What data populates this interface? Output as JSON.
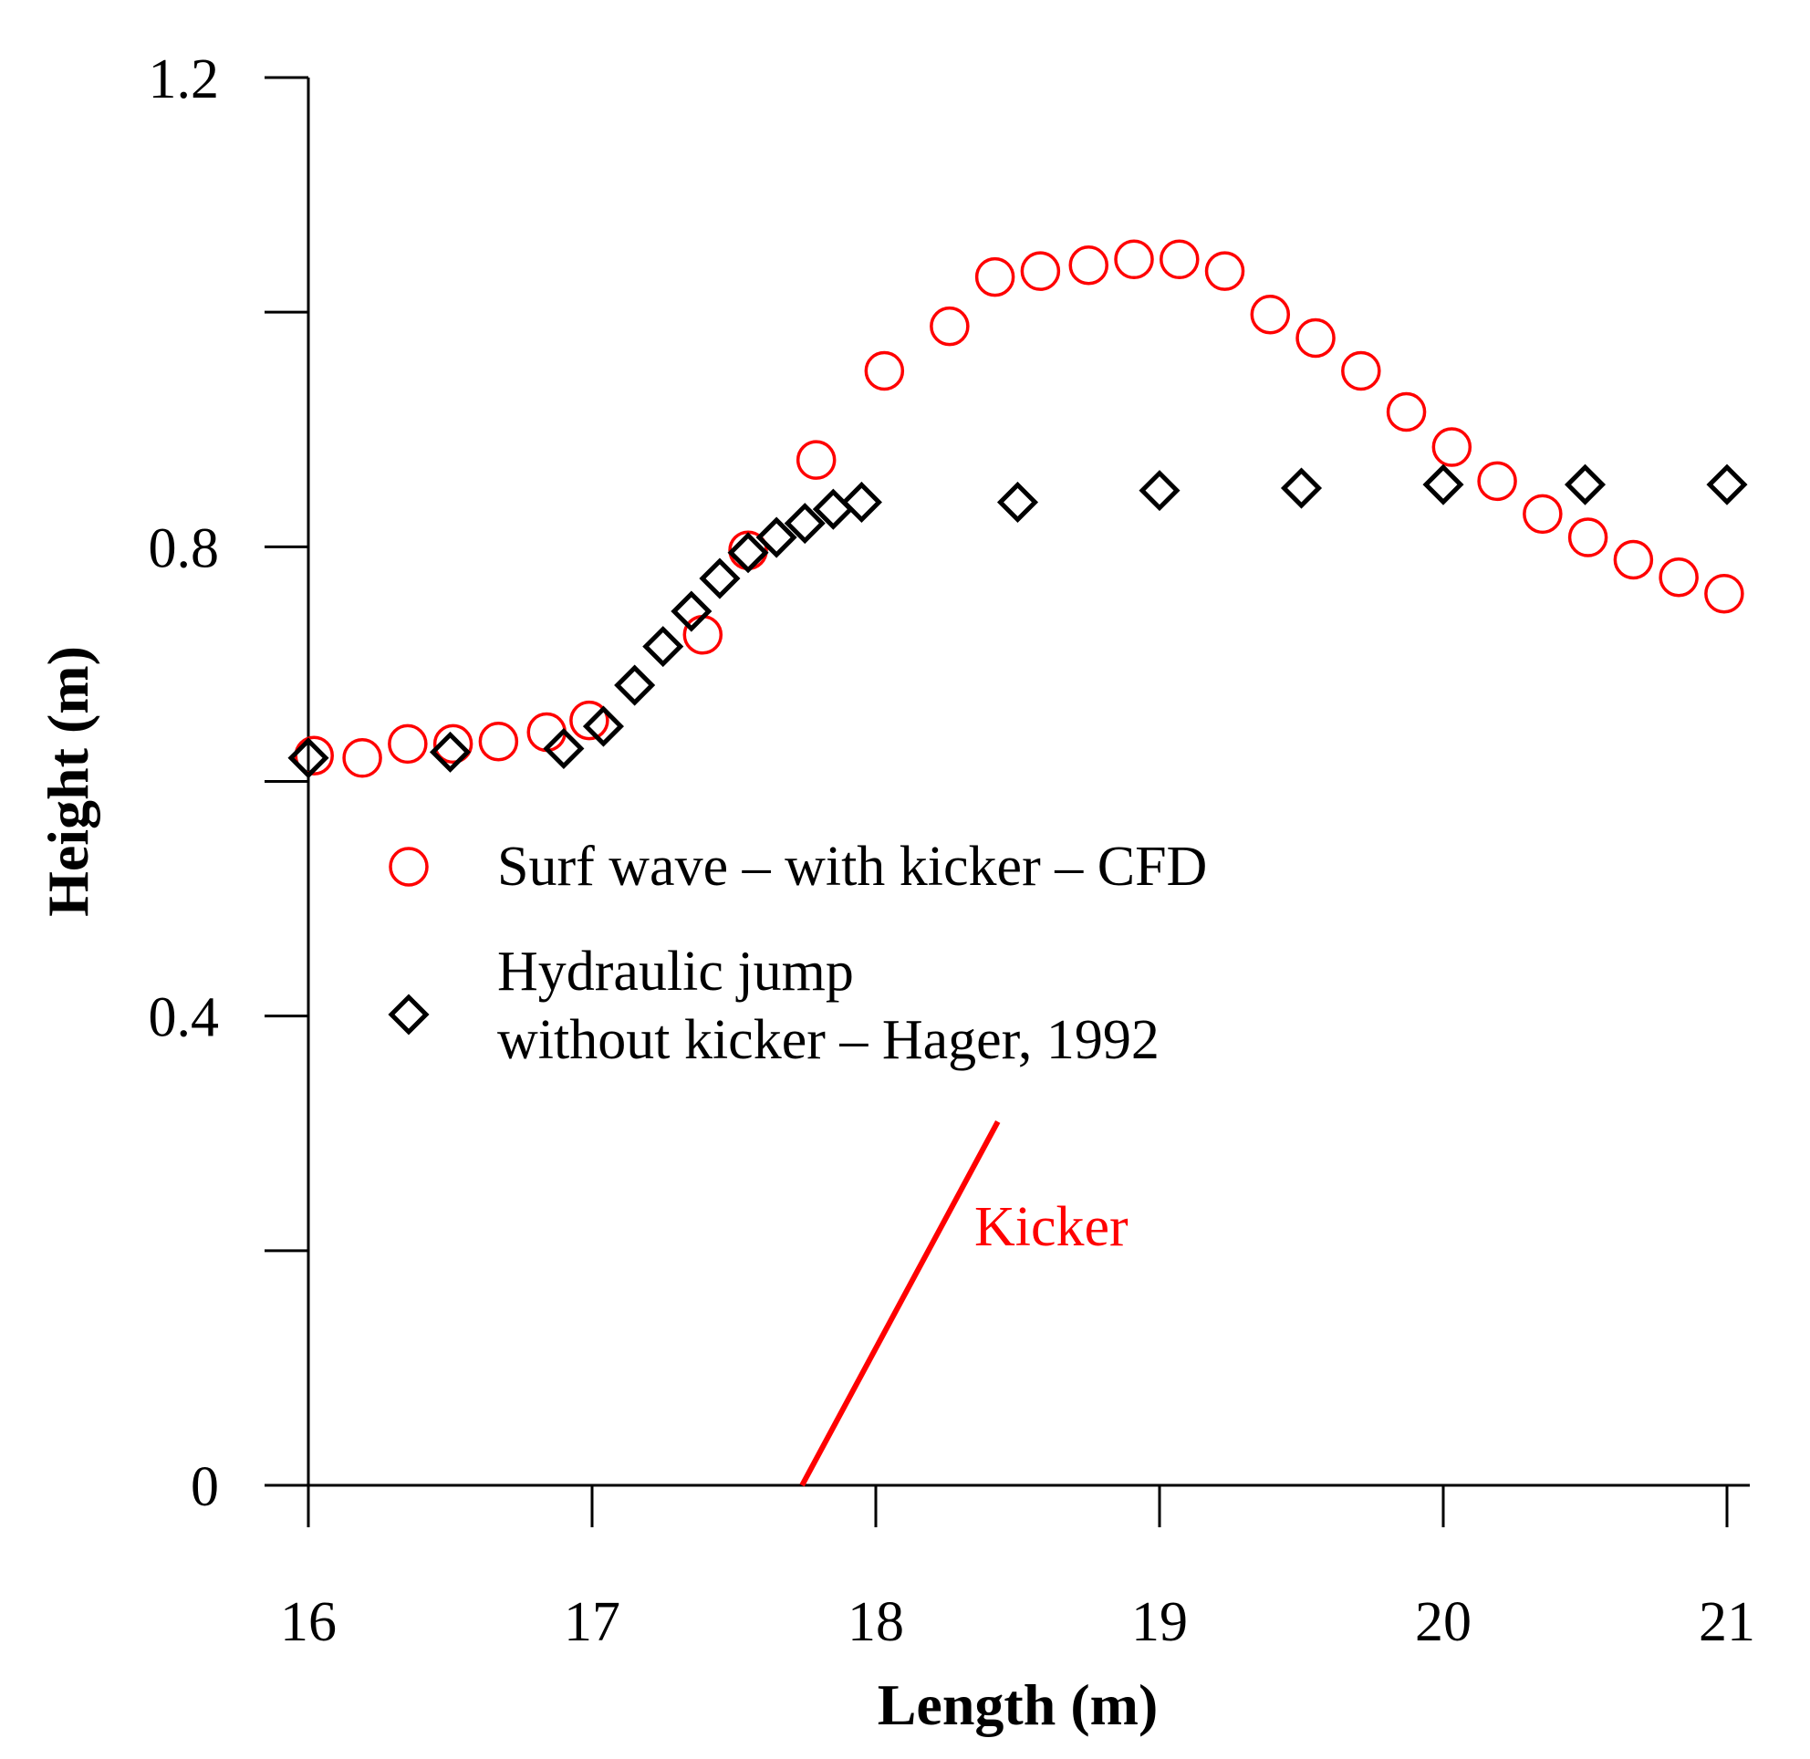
{
  "chart_data": {
    "type": "scatter",
    "title": "",
    "xlabel": "Length (m)",
    "ylabel": "Height (m)",
    "xlim": [
      16,
      21
    ],
    "ylim": [
      0,
      1.2
    ],
    "xticks": [
      16,
      17,
      18,
      19,
      20,
      21
    ],
    "xtick_labels": [
      "16",
      "17",
      "18",
      "19",
      "20",
      "21"
    ],
    "yticks": [
      0,
      0.2,
      0.4,
      0.6,
      0.8,
      1.0,
      1.2
    ],
    "ytick_labels": [
      "0",
      "",
      "0.4",
      "",
      "0.8",
      "",
      "1.2"
    ],
    "grid": false,
    "legend_position": "center-left",
    "series": [
      {
        "name": "Surf wave – with kicker – CFD",
        "marker": "circle",
        "color": "#ff0000",
        "x": [
          16.02,
          16.19,
          16.35,
          16.51,
          16.67,
          16.84,
          16.99,
          17.39,
          17.55,
          17.79,
          18.03,
          18.26,
          18.42,
          18.58,
          18.75,
          18.91,
          19.07,
          19.23,
          19.39,
          19.55,
          19.71,
          19.87,
          20.03,
          20.19,
          20.35,
          20.51,
          20.67,
          20.83,
          20.99
        ],
        "y": [
          0.622,
          0.62,
          0.632,
          0.632,
          0.634,
          0.642,
          0.652,
          0.725,
          0.797,
          0.874,
          0.95,
          0.988,
          1.03,
          1.035,
          1.04,
          1.045,
          1.045,
          1.035,
          0.998,
          0.978,
          0.95,
          0.915,
          0.885,
          0.856,
          0.828,
          0.808,
          0.789,
          0.774,
          0.76
        ]
      },
      {
        "name": "Hydraulic jump without kicker – Hager, 1992",
        "marker": "diamond",
        "color": "#000000",
        "x": [
          16.0,
          16.5,
          16.9,
          17.04,
          17.15,
          17.25,
          17.35,
          17.45,
          17.55,
          17.65,
          17.75,
          17.85,
          17.95,
          18.5,
          19.0,
          19.5,
          20.0,
          20.5,
          21.0
        ],
        "y": [
          0.62,
          0.625,
          0.628,
          0.647,
          0.682,
          0.715,
          0.745,
          0.773,
          0.795,
          0.808,
          0.82,
          0.832,
          0.838,
          0.838,
          0.848,
          0.85,
          0.853,
          0.853,
          0.853
        ]
      }
    ],
    "legend": {
      "entry1": "Surf wave – with kicker – CFD",
      "entry2_line1": "Hydraulic jump",
      "entry2_line2": "without kicker – Hager, 1992"
    },
    "annotations": {
      "kicker_label": "Kicker",
      "kicker_line": {
        "x": [
          17.74,
          18.43
        ],
        "y": [
          0.0,
          0.31
        ],
        "color": "#ff0000"
      }
    }
  }
}
